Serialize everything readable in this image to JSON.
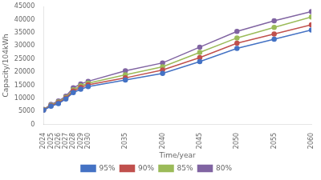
{
  "chart_data": {
    "type": "line",
    "x": [
      2024,
      2025,
      2026,
      2027,
      2028,
      2029,
      2030,
      2035,
      2040,
      2045,
      2050,
      2055,
      2060
    ],
    "series": [
      {
        "name": "95%",
        "color": "#4472C4",
        "values": [
          5500,
          7000,
          8000,
          9800,
          12200,
          13500,
          14500,
          17000,
          19500,
          24000,
          29000,
          32500,
          36000
        ]
      },
      {
        "name": "90%",
        "color": "#C0504D",
        "values": [
          5600,
          7200,
          8300,
          10100,
          12800,
          14200,
          15200,
          17800,
          20800,
          25500,
          31000,
          34500,
          38000
        ]
      },
      {
        "name": "85%",
        "color": "#9BBB59",
        "values": [
          5700,
          7400,
          8600,
          10400,
          13300,
          14800,
          15800,
          19000,
          22000,
          27500,
          33000,
          37000,
          41000
        ]
      },
      {
        "name": "80%",
        "color": "#8064A2",
        "values": [
          5800,
          7700,
          9000,
          10800,
          14000,
          15500,
          16500,
          20500,
          23500,
          29500,
          35500,
          39500,
          43000
        ]
      }
    ],
    "xlabel": "Time/year",
    "ylabel": "Capacity/104kWh",
    "xlim": [
      2024,
      2060
    ],
    "xticks": [
      2024,
      2025,
      2026,
      2027,
      2028,
      2029,
      2030,
      2035,
      2040,
      2045,
      2050,
      2055,
      2060
    ],
    "ylim": [
      0,
      45000
    ],
    "yticks": [
      0,
      5000,
      10000,
      15000,
      20000,
      25000,
      30000,
      35000,
      40000,
      45000
    ],
    "marker": "circle",
    "grid": false,
    "legend": "bottom"
  }
}
